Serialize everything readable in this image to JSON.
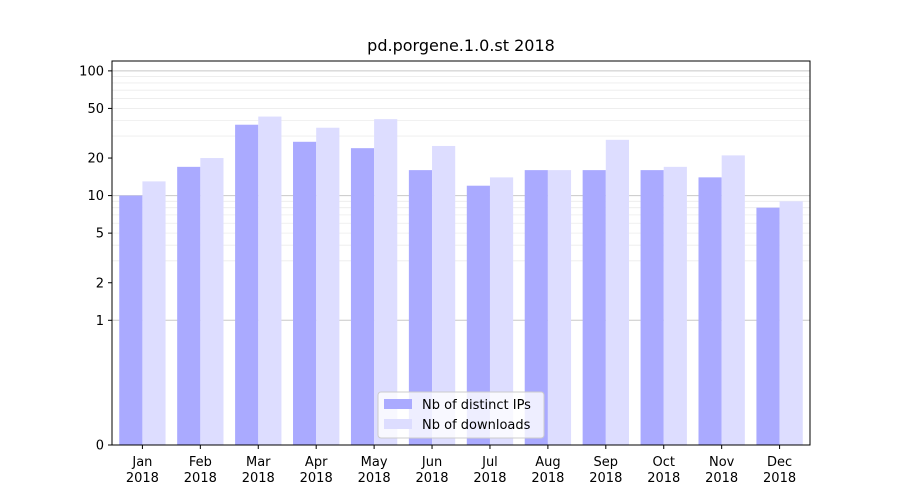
{
  "chart_data": {
    "type": "bar",
    "title": "pd.porgene.1.0.st 2018",
    "xlabel": "",
    "ylabel": "",
    "y_scale": "symlog",
    "ylim": [
      0,
      120
    ],
    "y_ticks": [
      0,
      1,
      2,
      5,
      10,
      20,
      50,
      100
    ],
    "categories": [
      [
        "Jan",
        "2018"
      ],
      [
        "Feb",
        "2018"
      ],
      [
        "Mar",
        "2018"
      ],
      [
        "Apr",
        "2018"
      ],
      [
        "May",
        "2018"
      ],
      [
        "Jun",
        "2018"
      ],
      [
        "Jul",
        "2018"
      ],
      [
        "Aug",
        "2018"
      ],
      [
        "Sep",
        "2018"
      ],
      [
        "Oct",
        "2018"
      ],
      [
        "Nov",
        "2018"
      ],
      [
        "Dec",
        "2018"
      ]
    ],
    "series": [
      {
        "name": "Nb of distinct IPs",
        "color": "#aaaaff",
        "values": [
          10,
          17,
          37,
          27,
          24,
          16,
          12,
          16,
          16,
          16,
          14,
          8
        ]
      },
      {
        "name": "Nb of downloads",
        "color": "#ddddff",
        "values": [
          13,
          20,
          43,
          35,
          41,
          25,
          14,
          16,
          28,
          17,
          21,
          9
        ]
      }
    ],
    "grid": true,
    "legend_position": "bottom-center"
  }
}
